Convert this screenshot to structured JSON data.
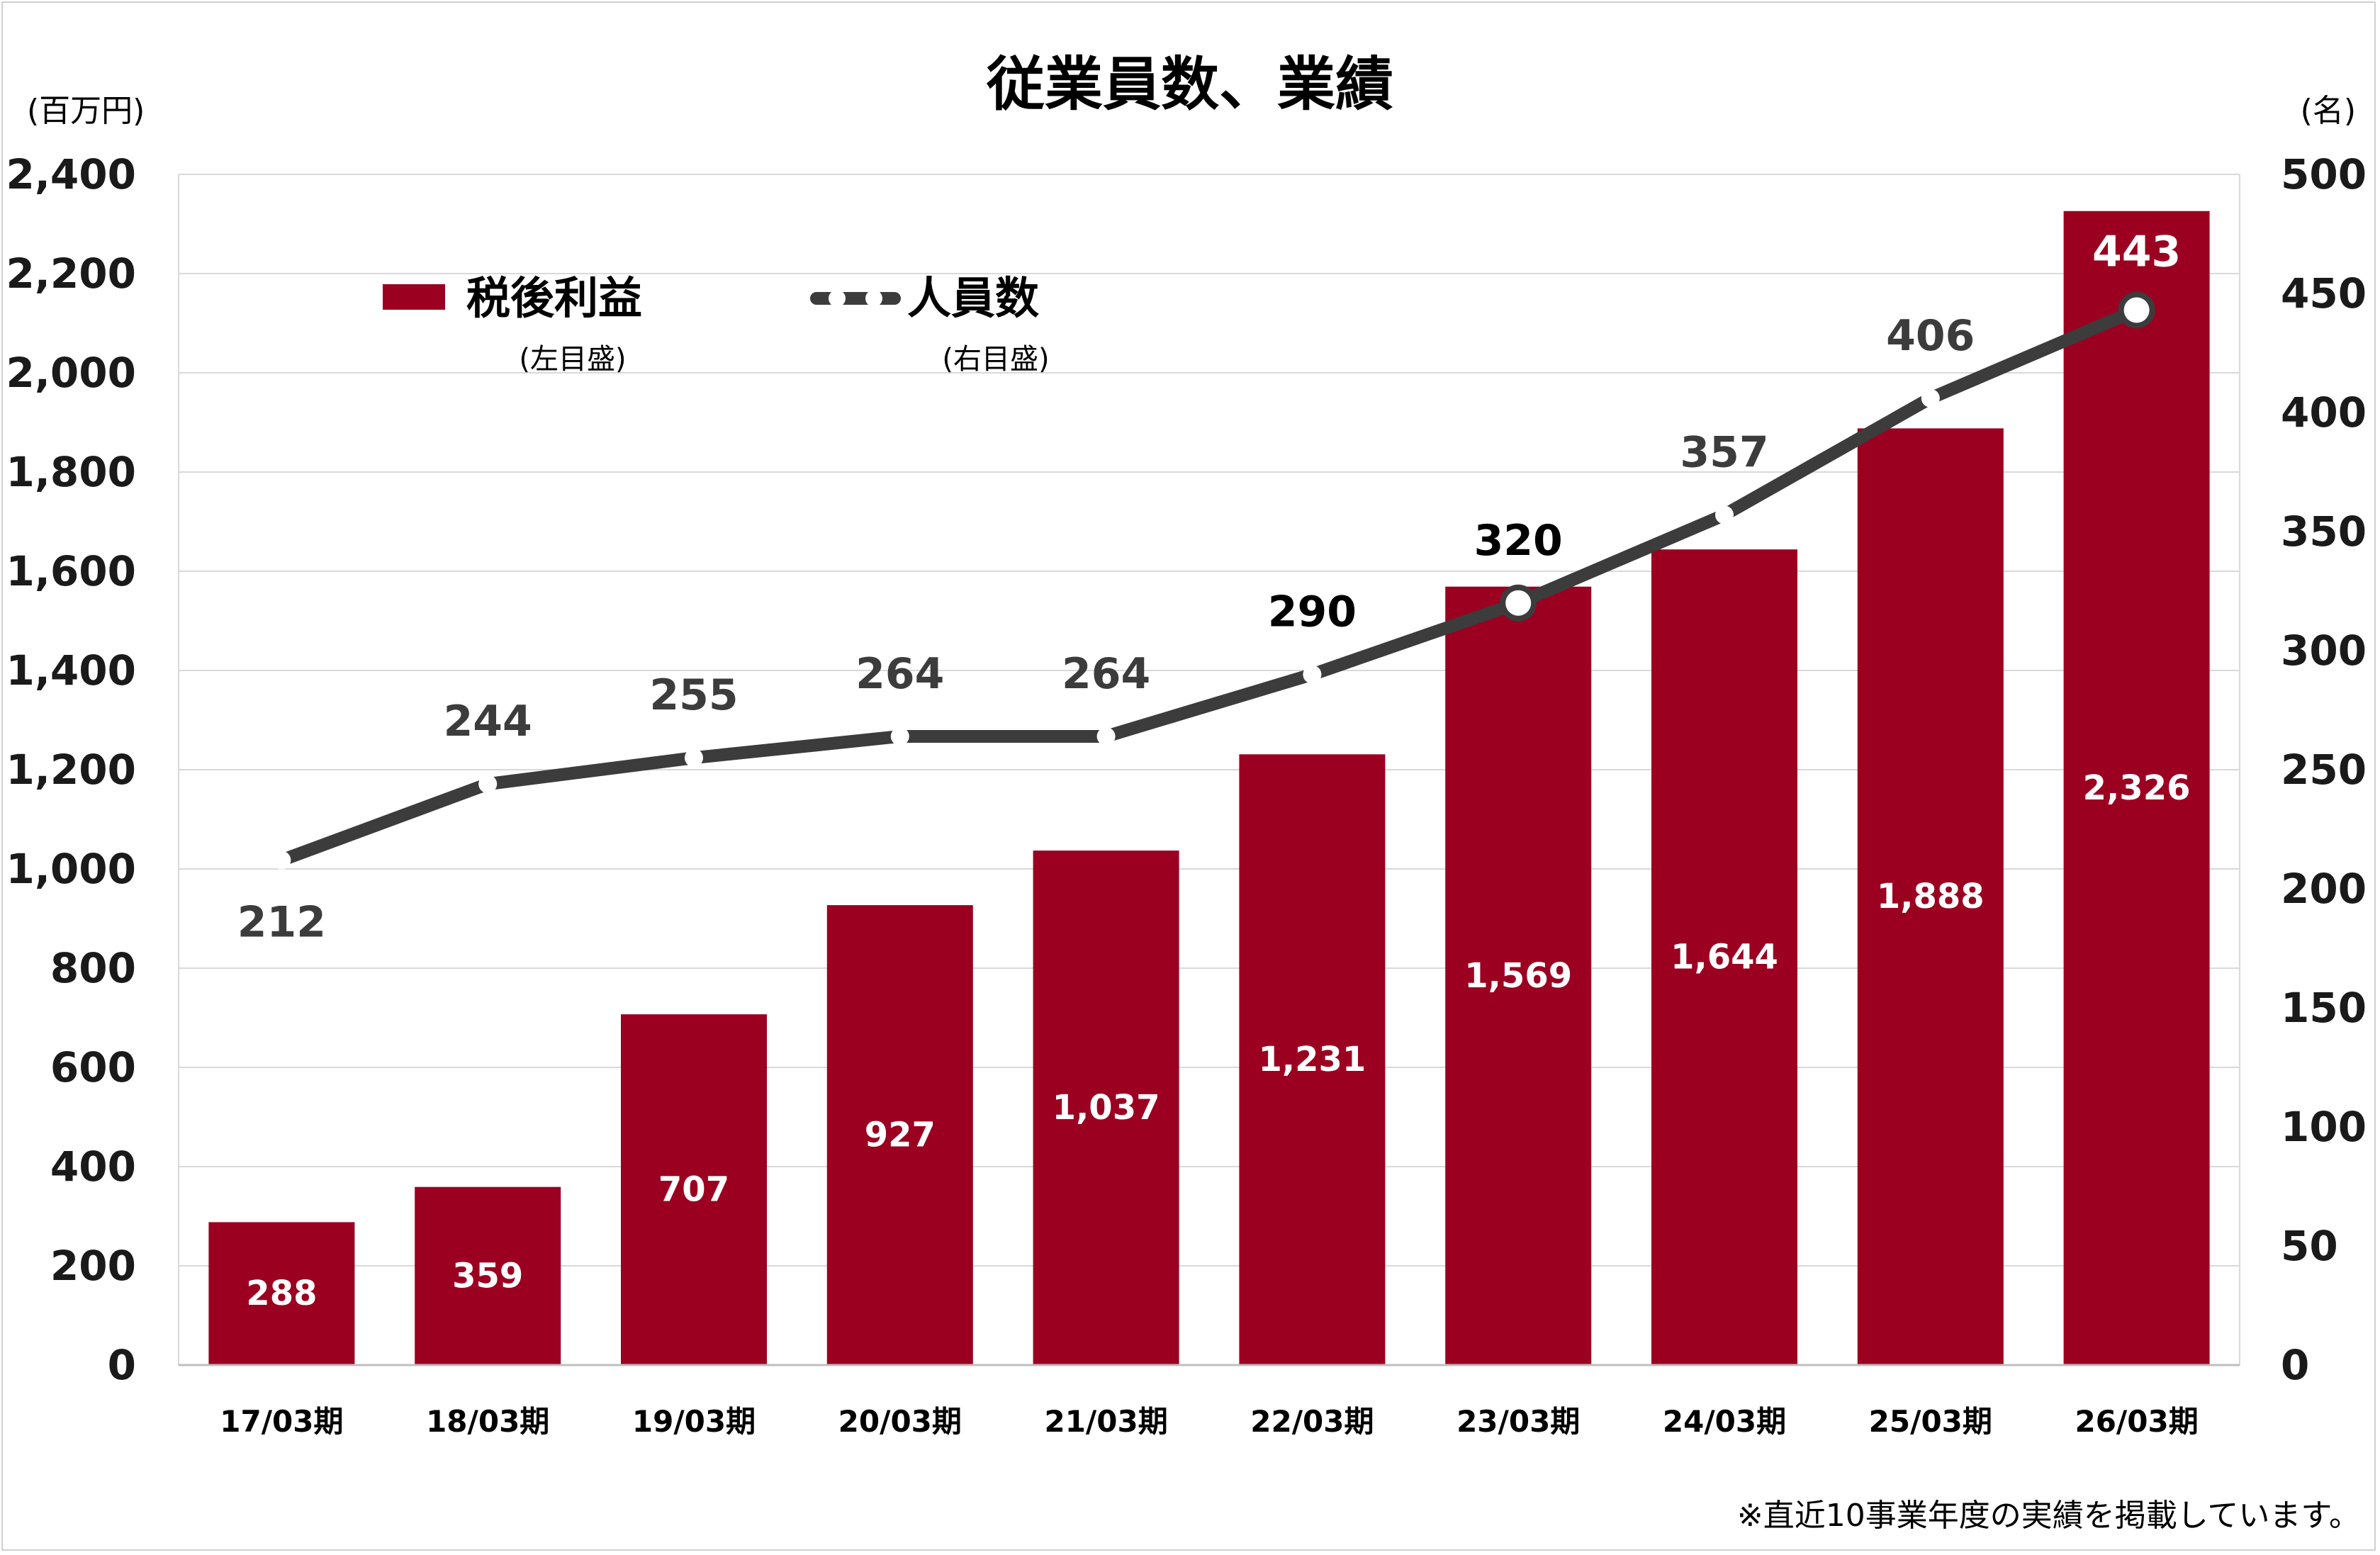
{
  "page": {
    "title": "従業員数、業績",
    "left_unit": "(百万円)",
    "right_unit": "(名)",
    "footnote": "※直近10事業年度の実績を掲載しています。"
  },
  "legend": {
    "bar_label": "税後利益",
    "bar_sub": "(左目盛)",
    "line_label": "人員数",
    "line_sub": "(右目盛)"
  },
  "colors": {
    "bar": "#9b0021",
    "line": "#3c3c3c",
    "grid": "#d9d9d9"
  },
  "chart_data": {
    "type": "bar",
    "title": "従業員数、業績",
    "categories": [
      "17/03期",
      "18/03期",
      "19/03期",
      "20/03期",
      "21/03期",
      "22/03期",
      "23/03期",
      "24/03期",
      "25/03期",
      "26/03期"
    ],
    "series": [
      {
        "name": "税後利益",
        "type": "bar",
        "axis": "left",
        "values": [
          288,
          359,
          707,
          927,
          1037,
          1231,
          1569,
          1644,
          1888,
          2326
        ],
        "labels": [
          "288",
          "359",
          "707",
          "927",
          "1,037",
          "1,231",
          "1,569",
          "1,644",
          "1,888",
          "2,326"
        ]
      },
      {
        "name": "人員数",
        "type": "line",
        "axis": "right",
        "values": [
          212,
          244,
          255,
          264,
          264,
          290,
          320,
          357,
          406,
          443
        ],
        "labels": [
          "212",
          "244",
          "255",
          "264",
          "264",
          "290",
          "320",
          "357",
          "406",
          "443"
        ],
        "label_colors": [
          "#3c3c3c",
          "#3c3c3c",
          "#3c3c3c",
          "#3c3c3c",
          "#3c3c3c",
          "#000000",
          "#000000",
          "#3c3c3c",
          "#3c3c3c",
          "#ffffff"
        ],
        "highlighted_points": [
          6,
          9
        ]
      }
    ],
    "y_left": {
      "range": [
        0,
        2400
      ],
      "ticks": [
        0,
        200,
        400,
        600,
        800,
        1000,
        1200,
        1400,
        1600,
        1800,
        2000,
        2200,
        2400
      ],
      "tick_labels": [
        "0",
        "200",
        "400",
        "600",
        "800",
        "1,000",
        "1,200",
        "1,400",
        "1,600",
        "1,800",
        "2,000",
        "2,200",
        "2,400"
      ]
    },
    "y_right": {
      "range": [
        0,
        500
      ],
      "ticks": [
        0,
        50,
        100,
        150,
        200,
        250,
        300,
        350,
        400,
        450,
        500
      ],
      "tick_labels": [
        "0",
        "50",
        "100",
        "150",
        "200",
        "250",
        "300",
        "350",
        "400",
        "450",
        "500"
      ]
    },
    "grid": true,
    "legend_position": "top-left"
  }
}
